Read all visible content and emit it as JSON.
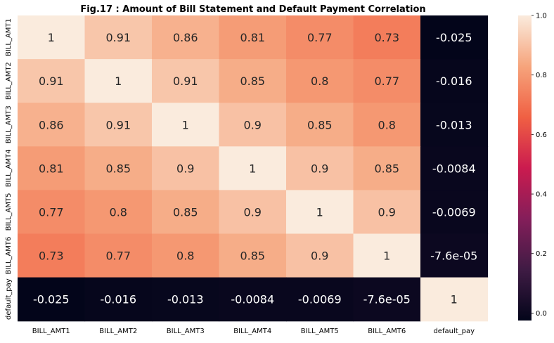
{
  "chart_data": {
    "type": "heatmap",
    "title": "Fig.17 : Amount of Bill Statement and Default Payment Correlation",
    "row_labels": [
      "BILL_AMT1",
      "BILL_AMT2",
      "BILL_AMT3",
      "BILL_AMT4",
      "BILL_AMT5",
      "BILL_AMT6",
      "default_pay"
    ],
    "col_labels": [
      "BILL_AMT1",
      "BILL_AMT2",
      "BILL_AMT3",
      "BILL_AMT4",
      "BILL_AMT5",
      "BILL_AMT6",
      "default_pay"
    ],
    "values": [
      [
        1,
        0.91,
        0.86,
        0.81,
        0.77,
        0.73,
        -0.025
      ],
      [
        0.91,
        1,
        0.91,
        0.85,
        0.8,
        0.77,
        -0.016
      ],
      [
        0.86,
        0.91,
        1,
        0.9,
        0.85,
        0.8,
        -0.013
      ],
      [
        0.81,
        0.85,
        0.9,
        1,
        0.9,
        0.85,
        -0.0084
      ],
      [
        0.77,
        0.8,
        0.85,
        0.9,
        1,
        0.9,
        -0.0069
      ],
      [
        0.73,
        0.77,
        0.8,
        0.85,
        0.9,
        1,
        -7.6e-05
      ],
      [
        -0.025,
        -0.016,
        -0.013,
        -0.0084,
        -0.0069,
        -7.6e-05,
        1
      ]
    ],
    "annotations": [
      [
        "1",
        "0.91",
        "0.86",
        "0.81",
        "0.77",
        "0.73",
        "-0.025"
      ],
      [
        "0.91",
        "1",
        "0.91",
        "0.85",
        "0.8",
        "0.77",
        "-0.016"
      ],
      [
        "0.86",
        "0.91",
        "1",
        "0.9",
        "0.85",
        "0.8",
        "-0.013"
      ],
      [
        "0.81",
        "0.85",
        "0.9",
        "1",
        "0.9",
        "0.85",
        "-0.0084"
      ],
      [
        "0.77",
        "0.8",
        "0.85",
        "0.9",
        "1",
        "0.9",
        "-0.0069"
      ],
      [
        "0.73",
        "0.77",
        "0.8",
        "0.85",
        "0.9",
        "1",
        "-7.6e-05"
      ],
      [
        "-0.025",
        "-0.016",
        "-0.013",
        "-0.0084",
        "-0.0069",
        "-7.6e-05",
        "1"
      ]
    ],
    "colorbar": {
      "range": [
        -0.025,
        1
      ],
      "ticks": [
        0.0,
        0.2,
        0.4,
        0.6,
        0.8,
        1.0
      ],
      "tick_labels": [
        "0.0",
        "0.2",
        "0.4",
        "0.6",
        "0.8",
        "1.0"
      ],
      "colormap": "rocket",
      "colormap_stops": [
        "#03051a",
        "#3f1b44",
        "#841e5a",
        "#cb1b4f",
        "#f06043",
        "#f6a47c",
        "#faebdd"
      ]
    }
  }
}
